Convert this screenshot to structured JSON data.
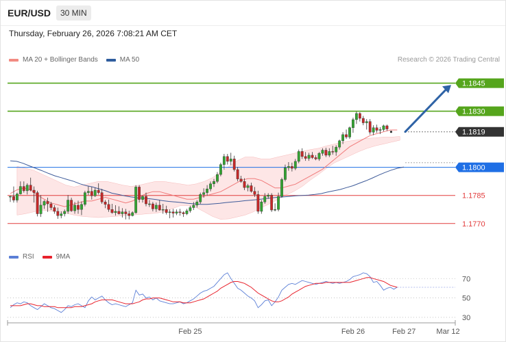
{
  "header": {
    "symbol": "EUR/USD",
    "timeframe": "30 MIN",
    "datetime": "Thursday, February 26, 2026 7:08:21 AM CET"
  },
  "legend": {
    "items": [
      {
        "label": "MA 20 + Bollinger Bands",
        "color": "#f28b82"
      },
      {
        "label": "MA 50",
        "color": "#2f5d9e"
      }
    ],
    "copyright": "Research © 2026 Trading Central"
  },
  "rsi_legend": {
    "items": [
      {
        "label": "RSI",
        "color": "#5b7fd6"
      },
      {
        "label": "9MA",
        "color": "#e8212b"
      }
    ]
  },
  "colors": {
    "up": "#33a532",
    "down": "#c62828",
    "resistance": "#55a51c",
    "support": "#e23b3b",
    "current": "#333333",
    "pivot": "#1f6fe5",
    "arrow": "#2f63a6",
    "band": "#fde2e2"
  },
  "chart_data": [
    {
      "type": "candlestick",
      "ylim": [
        1.1752,
        1.1858
      ],
      "x_ticks": [
        {
          "label": "Feb 25",
          "index": 53
        },
        {
          "label": "Feb 26",
          "index": 101
        },
        {
          "label": "Feb 27",
          "index": 116
        },
        {
          "label": "Mar 12",
          "index": 129
        }
      ],
      "levels": [
        {
          "value": 1.1845,
          "label": "1.1845",
          "kind": "resistance"
        },
        {
          "value": 1.183,
          "label": "1.1830",
          "kind": "resistance"
        },
        {
          "value": 1.1819,
          "label": "1.1819",
          "kind": "current"
        },
        {
          "value": 1.18,
          "label": "1.1800",
          "kind": "pivot"
        },
        {
          "value": 1.1785,
          "label": "1.1785",
          "kind": "support"
        },
        {
          "value": 1.177,
          "label": "1.1770",
          "kind": "support"
        }
      ],
      "projection": {
        "from_index": 115,
        "from_value": 1.1819,
        "to_index": 128,
        "to_value": 1.1844
      },
      "candles": [
        [
          1.17845,
          1.17848,
          1.17815,
          1.17845
        ],
        [
          1.17845,
          1.17898,
          1.17812,
          1.17825
        ],
        [
          1.17825,
          1.17865,
          1.17812,
          1.17858
        ],
        [
          1.17858,
          1.17925,
          1.17855,
          1.17898
        ],
        [
          1.17898,
          1.17925,
          1.17865,
          1.17875
        ],
        [
          1.17875,
          1.17915,
          1.17855,
          1.17905
        ],
        [
          1.17905,
          1.17945,
          1.17872,
          1.17878
        ],
        [
          1.17878,
          1.17898,
          1.17812,
          1.17865
        ],
        [
          1.17865,
          1.17875,
          1.17738,
          1.17752
        ],
        [
          1.17752,
          1.17852,
          1.17735,
          1.17798
        ],
        [
          1.17798,
          1.17825,
          1.17778,
          1.17818
        ],
        [
          1.17818,
          1.17838,
          1.17762,
          1.17805
        ],
        [
          1.17805,
          1.17815,
          1.17772,
          1.17785
        ],
        [
          1.17785,
          1.17798,
          1.17752,
          1.17765
        ],
        [
          1.17765,
          1.17785,
          1.17725,
          1.17742
        ],
        [
          1.17742,
          1.17765,
          1.17728,
          1.17752
        ],
        [
          1.17752,
          1.17775,
          1.17738,
          1.17765
        ],
        [
          1.17765,
          1.17852,
          1.17752,
          1.17825
        ],
        [
          1.17825,
          1.17838,
          1.17762,
          1.17768
        ],
        [
          1.17768,
          1.17815,
          1.17752,
          1.17798
        ],
        [
          1.17798,
          1.17822,
          1.17752,
          1.17775
        ],
        [
          1.17775,
          1.17818,
          1.17745,
          1.17802
        ],
        [
          1.17802,
          1.17875,
          1.17792,
          1.17865
        ],
        [
          1.17865,
          1.17898,
          1.17852,
          1.17872
        ],
        [
          1.17872,
          1.17895,
          1.17828,
          1.17848
        ],
        [
          1.17848,
          1.17892,
          1.17842,
          1.17878
        ],
        [
          1.17878,
          1.17915,
          1.17855,
          1.17865
        ],
        [
          1.17865,
          1.17885,
          1.17805,
          1.17815
        ],
        [
          1.17815,
          1.17825,
          1.17782,
          1.17802
        ],
        [
          1.17802,
          1.17828,
          1.17762,
          1.17775
        ],
        [
          1.17775,
          1.17805,
          1.17752,
          1.17758
        ],
        [
          1.17758,
          1.17798,
          1.17742,
          1.17765
        ],
        [
          1.17765,
          1.17792,
          1.17748,
          1.17752
        ],
        [
          1.17752,
          1.17782,
          1.17732,
          1.17762
        ],
        [
          1.17762,
          1.17778,
          1.17722,
          1.17752
        ],
        [
          1.17752,
          1.17768,
          1.17722,
          1.17742
        ],
        [
          1.17742,
          1.17765,
          1.17738,
          1.17758
        ],
        [
          1.17758,
          1.17905,
          1.17752,
          1.17895
        ],
        [
          1.17895,
          1.17905,
          1.17812,
          1.17828
        ],
        [
          1.17828,
          1.17852,
          1.17812,
          1.17845
        ],
        [
          1.17845,
          1.17865,
          1.17792,
          1.17805
        ],
        [
          1.17805,
          1.17825,
          1.17788,
          1.17805
        ],
        [
          1.17805,
          1.17815,
          1.17765,
          1.17778
        ],
        [
          1.17778,
          1.17812,
          1.17762,
          1.17798
        ],
        [
          1.17798,
          1.17825,
          1.17768,
          1.17772
        ],
        [
          1.17772,
          1.17805,
          1.17752,
          1.17775
        ],
        [
          1.17775,
          1.17795,
          1.17748,
          1.17758
        ],
        [
          1.17758,
          1.17775,
          1.17728,
          1.17762
        ],
        [
          1.17762,
          1.17778,
          1.17732,
          1.17755
        ],
        [
          1.17755,
          1.17775,
          1.17745,
          1.17762
        ],
        [
          1.17762,
          1.17778,
          1.17742,
          1.17758
        ],
        [
          1.17758,
          1.17765,
          1.17735,
          1.17752
        ],
        [
          1.17752,
          1.17778,
          1.17745,
          1.17768
        ],
        [
          1.17768,
          1.17795,
          1.17758,
          1.17785
        ],
        [
          1.17785,
          1.17815,
          1.17772,
          1.17798
        ],
        [
          1.17798,
          1.17825,
          1.17785,
          1.17815
        ],
        [
          1.17815,
          1.17865,
          1.17805,
          1.17855
        ],
        [
          1.17855,
          1.17888,
          1.17838,
          1.17865
        ],
        [
          1.17865,
          1.17905,
          1.17848,
          1.17885
        ],
        [
          1.17885,
          1.17925,
          1.17872,
          1.17912
        ],
        [
          1.17912,
          1.17938,
          1.17895,
          1.17925
        ],
        [
          1.17925,
          1.17975,
          1.17915,
          1.17962
        ],
        [
          1.17962,
          1.18025,
          1.17952,
          1.18015
        ],
        [
          1.18015,
          1.18072,
          1.17988,
          1.18058
        ],
        [
          1.18058,
          1.18072,
          1.18015,
          1.18032
        ],
        [
          1.18032,
          1.18078,
          1.18012,
          1.18045
        ],
        [
          1.18045,
          1.18062,
          1.17978,
          1.17988
        ],
        [
          1.17988,
          1.18002,
          1.17925,
          1.17938
        ],
        [
          1.17938,
          1.17955,
          1.17918,
          1.17925
        ],
        [
          1.17925,
          1.17942,
          1.17878,
          1.17892
        ],
        [
          1.17892,
          1.17912,
          1.17872,
          1.17902
        ],
        [
          1.17902,
          1.17918,
          1.17865,
          1.17872
        ],
        [
          1.17872,
          1.17895,
          1.17842,
          1.17855
        ],
        [
          1.17855,
          1.17875,
          1.17752,
          1.17765
        ],
        [
          1.17765,
          1.17825,
          1.17752,
          1.17815
        ],
        [
          1.17815,
          1.17862,
          1.17805,
          1.17845
        ],
        [
          1.17845,
          1.17862,
          1.17832,
          1.17852
        ],
        [
          1.17852,
          1.17862,
          1.17762,
          1.17772
        ],
        [
          1.17772,
          1.17808,
          1.17765,
          1.17775
        ],
        [
          1.17775,
          1.17865,
          1.17765,
          1.17845
        ],
        [
          1.17845,
          1.17945,
          1.17838,
          1.17935
        ],
        [
          1.17935,
          1.18015,
          1.17925,
          1.17998
        ],
        [
          1.17998,
          1.18028,
          1.17982,
          1.18005
        ],
        [
          1.18005,
          1.18025,
          1.17978,
          1.17995
        ],
        [
          1.17995,
          1.18045,
          1.17985,
          1.18032
        ],
        [
          1.18032,
          1.18095,
          1.18022,
          1.18085
        ],
        [
          1.18085,
          1.18102,
          1.18045,
          1.18058
        ],
        [
          1.18058,
          1.18082,
          1.18035,
          1.18048
        ],
        [
          1.18048,
          1.18078,
          1.18035,
          1.18065
        ],
        [
          1.18065,
          1.18082,
          1.18045,
          1.18052
        ],
        [
          1.18052,
          1.18065,
          1.18038,
          1.18045
        ],
        [
          1.18045,
          1.18082,
          1.18035,
          1.18075
        ],
        [
          1.18075,
          1.18102,
          1.18062,
          1.18092
        ],
        [
          1.18092,
          1.18105,
          1.18055,
          1.18065
        ],
        [
          1.18065,
          1.18102,
          1.18055,
          1.18085
        ],
        [
          1.18085,
          1.18115,
          1.18068,
          1.18082
        ],
        [
          1.18082,
          1.18118,
          1.18062,
          1.18108
        ],
        [
          1.18108,
          1.18148,
          1.18095,
          1.18142
        ],
        [
          1.18142,
          1.18188,
          1.18125,
          1.18175
        ],
        [
          1.18175,
          1.18202,
          1.18152,
          1.18162
        ],
        [
          1.18162,
          1.18218,
          1.18152,
          1.18212
        ],
        [
          1.18212,
          1.18265,
          1.18185,
          1.18255
        ],
        [
          1.18255,
          1.18298,
          1.18232,
          1.18288
        ],
        [
          1.18288,
          1.18295,
          1.18245,
          1.18262
        ],
        [
          1.18262,
          1.18275,
          1.18225,
          1.18238
        ],
        [
          1.18238,
          1.18258,
          1.18202,
          1.18245
        ],
        [
          1.18245,
          1.18258,
          1.18175,
          1.18188
        ],
        [
          1.18188,
          1.18225,
          1.18172,
          1.18212
        ],
        [
          1.18212,
          1.18228,
          1.18185,
          1.18198
        ],
        [
          1.18198,
          1.18215,
          1.18178,
          1.18202
        ],
        [
          1.18202,
          1.18228,
          1.18192,
          1.18222
        ],
        [
          1.18222,
          1.18228,
          1.18195,
          1.18205
        ]
      ],
      "ma20": [
        1.1786,
        1.1788,
        1.1789,
        1.1788,
        1.1785,
        1.1783,
        1.1781,
        1.178,
        1.1779,
        1.178,
        1.1781,
        1.1782,
        1.1782,
        1.1783,
        1.1784,
        1.1783,
        1.1782,
        1.1781,
        1.1782,
        1.1784,
        1.1786,
        1.1787,
        1.1787,
        1.1786,
        1.1785,
        1.1784,
        1.1783,
        1.1783,
        1.1784,
        1.1785,
        1.1786,
        1.1787,
        1.1789,
        1.1791,
        1.1793,
        1.1794,
        1.1794,
        1.1793,
        1.1791,
        1.1789,
        1.1789,
        1.179,
        1.1791,
        1.1793,
        1.1795,
        1.1797,
        1.1799,
        1.1802,
        1.1805,
        1.1808,
        1.1811,
        1.1813,
        1.1815,
        1.1817,
        1.1818,
        1.1819,
        1.182,
        1.182
      ],
      "ma50_start": 1.18035,
      "ma50": [
        1.18035,
        1.18032,
        1.18022,
        1.18008,
        1.17995,
        1.17982,
        1.17968,
        1.17955,
        1.17945,
        1.17935,
        1.17925,
        1.17912,
        1.17902,
        1.17895,
        1.17885,
        1.17875,
        1.17862,
        1.17855,
        1.17848,
        1.17842,
        1.17838,
        1.17835,
        1.17832,
        1.17828,
        1.17822,
        1.17818,
        1.17815,
        1.17812,
        1.17808,
        1.17805,
        1.17802,
        1.17802,
        1.17805,
        1.17808,
        1.17812,
        1.17815,
        1.17818,
        1.17822,
        1.17825,
        1.17828,
        1.17832,
        1.17836,
        1.1784,
        1.17842,
        1.17845,
        1.17848,
        1.1785,
        1.17852,
        1.17855,
        1.1786,
        1.17868,
        1.17875,
        1.17882,
        1.17892,
        1.17902,
        1.17915,
        1.17928,
        1.17942,
        1.17958,
        1.17972,
        1.17985,
        1.17995,
        1.18002
      ],
      "band_upper": [
        1.18005,
        1.17995,
        1.17985,
        1.17965,
        1.17945,
        1.17925,
        1.17905,
        1.17895,
        1.17905,
        1.17915,
        1.17925,
        1.17925,
        1.17915,
        1.17905,
        1.17898,
        1.17905,
        1.17915,
        1.17925,
        1.17925,
        1.17918,
        1.17912,
        1.17905,
        1.17912,
        1.17925,
        1.17945,
        1.17975,
        1.18005,
        1.18035,
        1.18055,
        1.18055,
        1.18045,
        1.18045,
        1.18055,
        1.18065,
        1.18075,
        1.18085,
        1.18095,
        1.18102,
        1.18115,
        1.18125,
        1.18135,
        1.18142,
        1.18148,
        1.18155,
        1.18158,
        1.18162,
        1.18162,
        1.18165
      ],
      "band_lower": [
        1.17745,
        1.17752,
        1.17762,
        1.17772,
        1.17768,
        1.17762,
        1.17755,
        1.17745,
        1.17738,
        1.17735,
        1.17732,
        1.17735,
        1.17738,
        1.17742,
        1.17745,
        1.17748,
        1.17752,
        1.17755,
        1.17762,
        1.17778,
        1.17795,
        1.17795,
        1.17785,
        1.17762,
        1.17738,
        1.17722,
        1.17725,
        1.17735,
        1.17745,
        1.17762,
        1.17785,
        1.17805,
        1.17828,
        1.17852,
        1.17872,
        1.17898,
        1.17932,
        1.17962,
        1.17995,
        1.18025,
        1.18045,
        1.18065,
        1.18085,
        1.18102,
        1.18115,
        1.18125,
        1.18135,
        1.18145
      ]
    },
    {
      "type": "line",
      "ylim": [
        25,
        85
      ],
      "y_ticks": [
        "70",
        "50",
        "30"
      ],
      "rsi": [
        40,
        43,
        45,
        44,
        46,
        45,
        42,
        40,
        38,
        41,
        44,
        42,
        40,
        39,
        37,
        35,
        38,
        42,
        41,
        43,
        44,
        42,
        40,
        47,
        51,
        48,
        50,
        52,
        48,
        45,
        43,
        44,
        43,
        42,
        41,
        43,
        45,
        58,
        53,
        54,
        50,
        51,
        48,
        50,
        47,
        46,
        45,
        44,
        44,
        45,
        46,
        44,
        45,
        47,
        49,
        52,
        55,
        57,
        58,
        60,
        62,
        66,
        70,
        74,
        76,
        70,
        65,
        60,
        58,
        55,
        52,
        50,
        47,
        40,
        43,
        47,
        48,
        42,
        46,
        51,
        58,
        61,
        64,
        65,
        64,
        66,
        68,
        67,
        66,
        65,
        64,
        65,
        66,
        67,
        66,
        65,
        66,
        65,
        66,
        67,
        69,
        72,
        73,
        74,
        76,
        75,
        72,
        66,
        67,
        63,
        58,
        60,
        61,
        59,
        61
      ],
      "ma9": [
        42,
        42,
        42,
        42,
        43,
        44,
        44,
        43,
        42,
        42,
        41,
        41,
        41,
        41,
        40,
        40,
        40,
        40,
        40,
        41,
        41,
        41,
        42,
        43,
        44,
        46,
        47,
        48,
        48,
        48,
        48,
        47,
        46,
        45,
        44,
        44,
        44,
        45,
        46,
        48,
        49,
        49,
        50,
        50,
        50,
        49,
        48,
        47,
        46,
        46,
        46,
        45,
        45,
        45,
        46,
        47,
        48,
        49,
        51,
        53,
        55,
        57,
        60,
        62,
        64,
        66,
        67,
        67,
        66,
        65,
        63,
        61,
        58,
        55,
        53,
        51,
        49,
        47,
        46,
        46,
        47,
        49,
        51,
        54,
        56,
        58,
        60,
        62,
        63,
        64,
        65,
        65,
        65,
        66,
        66,
        66,
        66,
        66,
        66,
        66,
        66,
        67,
        68,
        69,
        70,
        71,
        71,
        70,
        69,
        68,
        67,
        65,
        63,
        62,
        61
      ]
    }
  ]
}
